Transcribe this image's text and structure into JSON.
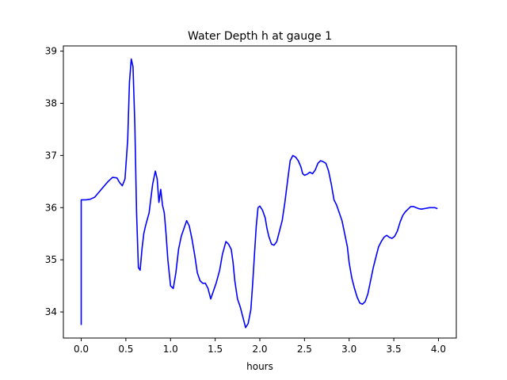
{
  "chart_data": {
    "type": "line",
    "title": "Water Depth h at gauge 1",
    "xlabel": "hours",
    "ylabel": "",
    "xlim": [
      -0.2,
      4.2
    ],
    "ylim": [
      33.5,
      39.1
    ],
    "grid": false,
    "legend": "none",
    "xticks": [
      0.0,
      0.5,
      1.0,
      1.5,
      2.0,
      2.5,
      3.0,
      3.5,
      4.0
    ],
    "xtick_labels": [
      "0.0",
      "0.5",
      "1.0",
      "1.5",
      "2.0",
      "2.5",
      "3.0",
      "3.5",
      "4.0"
    ],
    "yticks": [
      34,
      35,
      36,
      37,
      38,
      39
    ],
    "ytick_labels": [
      "34",
      "35",
      "36",
      "37",
      "38",
      "39"
    ],
    "series": [
      {
        "color": "#0000ff",
        "x": [
          0.0,
          0.0,
          0.05,
          0.1,
          0.15,
          0.2,
          0.25,
          0.3,
          0.35,
          0.4,
          0.43,
          0.46,
          0.49,
          0.52,
          0.54,
          0.56,
          0.58,
          0.6,
          0.62,
          0.64,
          0.66,
          0.68,
          0.7,
          0.72,
          0.76,
          0.8,
          0.83,
          0.85,
          0.87,
          0.89,
          0.91,
          0.93,
          0.95,
          0.97,
          1.0,
          1.03,
          1.06,
          1.09,
          1.12,
          1.15,
          1.18,
          1.21,
          1.24,
          1.27,
          1.3,
          1.33,
          1.36,
          1.39,
          1.42,
          1.45,
          1.48,
          1.51,
          1.55,
          1.58,
          1.62,
          1.65,
          1.68,
          1.7,
          1.72,
          1.75,
          1.78,
          1.81,
          1.84,
          1.87,
          1.9,
          1.92,
          1.94,
          1.96,
          1.98,
          2.0,
          2.03,
          2.06,
          2.08,
          2.1,
          2.13,
          2.16,
          2.19,
          2.22,
          2.25,
          2.28,
          2.31,
          2.34,
          2.37,
          2.4,
          2.43,
          2.46,
          2.48,
          2.5,
          2.53,
          2.56,
          2.59,
          2.62,
          2.65,
          2.68,
          2.71,
          2.74,
          2.77,
          2.8,
          2.83,
          2.86,
          2.89,
          2.92,
          2.95,
          2.98,
          3.0,
          3.03,
          3.06,
          3.09,
          3.12,
          3.15,
          3.18,
          3.21,
          3.24,
          3.27,
          3.3,
          3.33,
          3.36,
          3.39,
          3.42,
          3.45,
          3.48,
          3.51,
          3.54,
          3.57,
          3.6,
          3.63,
          3.66,
          3.69,
          3.72,
          3.75,
          3.78,
          3.81,
          3.84,
          3.87,
          3.9,
          3.93,
          3.96,
          3.99
        ],
        "y": [
          33.75,
          36.15,
          36.15,
          36.16,
          36.2,
          36.3,
          36.4,
          36.5,
          36.58,
          36.57,
          36.48,
          36.42,
          36.55,
          37.3,
          38.4,
          38.85,
          38.7,
          37.6,
          35.9,
          34.85,
          34.8,
          35.2,
          35.5,
          35.65,
          35.9,
          36.45,
          36.7,
          36.55,
          36.1,
          36.35,
          36.05,
          35.9,
          35.5,
          35.0,
          34.5,
          34.45,
          34.75,
          35.2,
          35.45,
          35.6,
          35.75,
          35.65,
          35.4,
          35.1,
          34.75,
          34.6,
          34.55,
          34.55,
          34.45,
          34.25,
          34.4,
          34.55,
          34.8,
          35.1,
          35.35,
          35.3,
          35.2,
          34.95,
          34.6,
          34.25,
          34.1,
          33.9,
          33.7,
          33.78,
          34.05,
          34.55,
          35.1,
          35.65,
          36.0,
          36.03,
          35.95,
          35.8,
          35.6,
          35.45,
          35.3,
          35.28,
          35.35,
          35.55,
          35.75,
          36.1,
          36.5,
          36.9,
          37.0,
          36.97,
          36.9,
          36.78,
          36.65,
          36.62,
          36.64,
          36.68,
          36.65,
          36.72,
          36.85,
          36.9,
          36.88,
          36.85,
          36.7,
          36.45,
          36.15,
          36.05,
          35.9,
          35.75,
          35.5,
          35.25,
          34.95,
          34.65,
          34.45,
          34.28,
          34.17,
          34.15,
          34.2,
          34.35,
          34.6,
          34.85,
          35.05,
          35.25,
          35.35,
          35.43,
          35.47,
          35.43,
          35.41,
          35.45,
          35.55,
          35.72,
          35.85,
          35.92,
          35.97,
          36.02,
          36.02,
          36.0,
          35.98,
          35.97,
          35.98,
          35.99,
          36.0,
          36.0,
          36.0,
          35.98
        ]
      }
    ]
  }
}
